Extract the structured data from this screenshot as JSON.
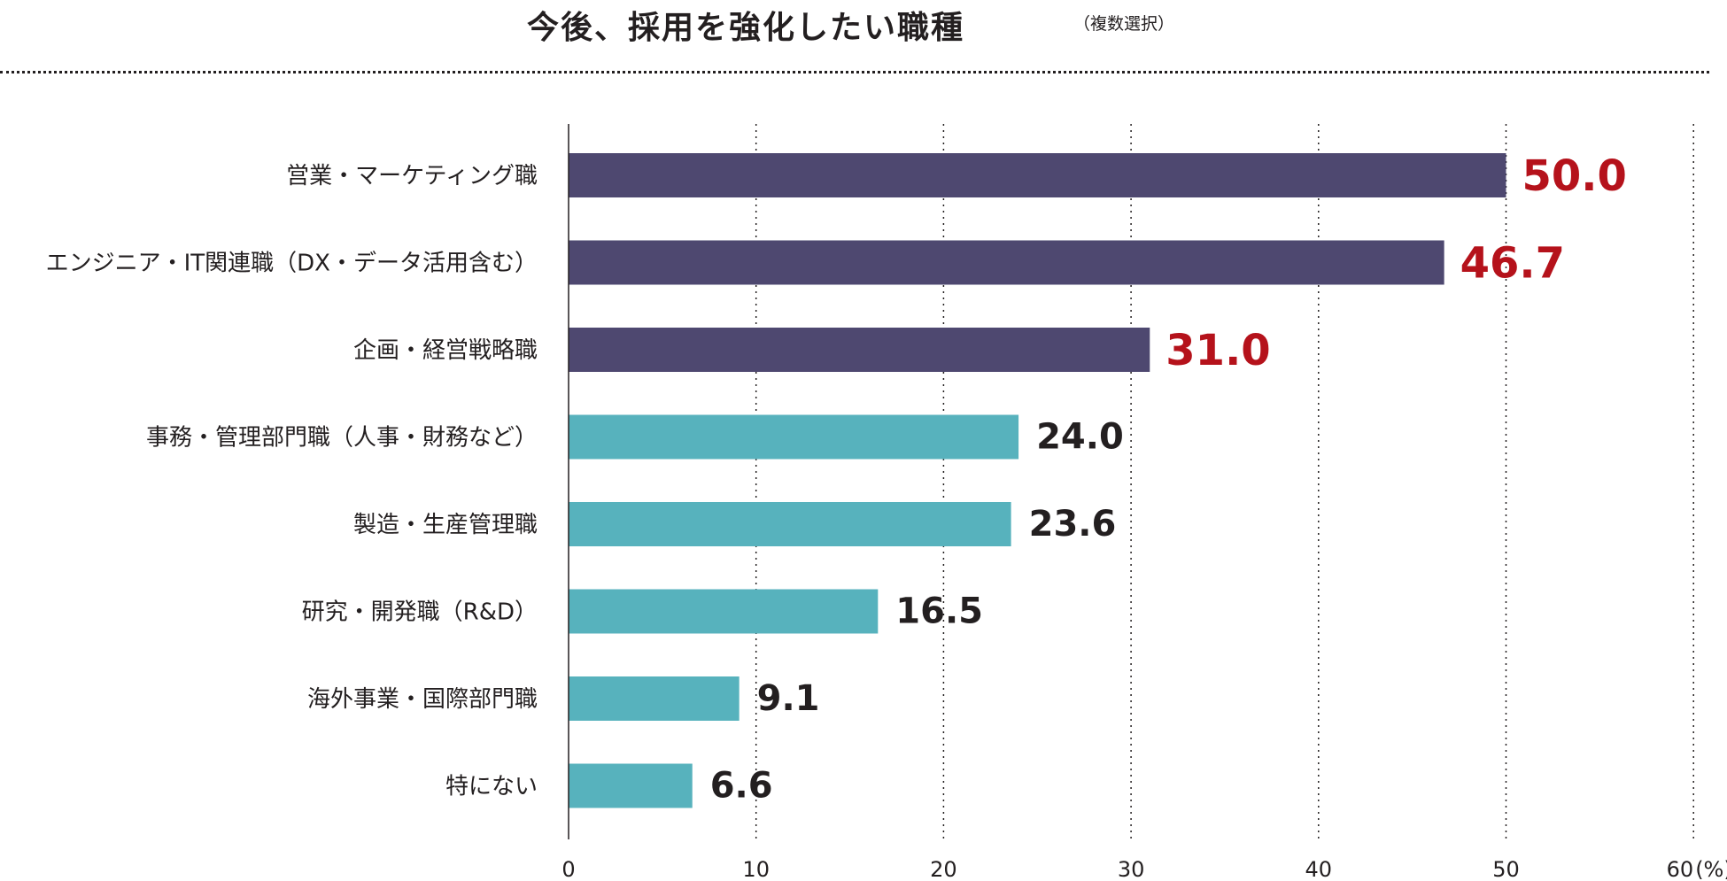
{
  "chart_data": {
    "type": "bar",
    "orientation": "horizontal",
    "title": "今後、採用を強化したい職種",
    "subtitle": "（複数選択）",
    "unit_label": "(%)",
    "xlim": [
      0,
      60
    ],
    "xticks": [
      0,
      10,
      20,
      30,
      40,
      50,
      60
    ],
    "grid": true,
    "categories": [
      "営業・マーケティング職",
      "エンジニア・IT関連職（DX・データ活用含む）",
      "企画・経営戦略職",
      "事務・管理部門職（人事・財務など）",
      "製造・生産管理職",
      "研究・開発職（R&D）",
      "海外事業・国際部門職",
      "特にない"
    ],
    "values": [
      50.0,
      46.7,
      31.0,
      24.0,
      23.6,
      16.5,
      9.1,
      6.6
    ],
    "value_labels": [
      "50.0",
      "46.7",
      "31.0",
      "24.0",
      "23.6",
      "16.5",
      "9.1",
      "6.6"
    ],
    "highlight_top_n": 3,
    "colors": {
      "highlight_bar": "#4e4870",
      "normal_bar": "#57b2bd",
      "highlight_text": "#b5121b",
      "normal_text": "#231f20",
      "axis": "#231f20"
    }
  }
}
